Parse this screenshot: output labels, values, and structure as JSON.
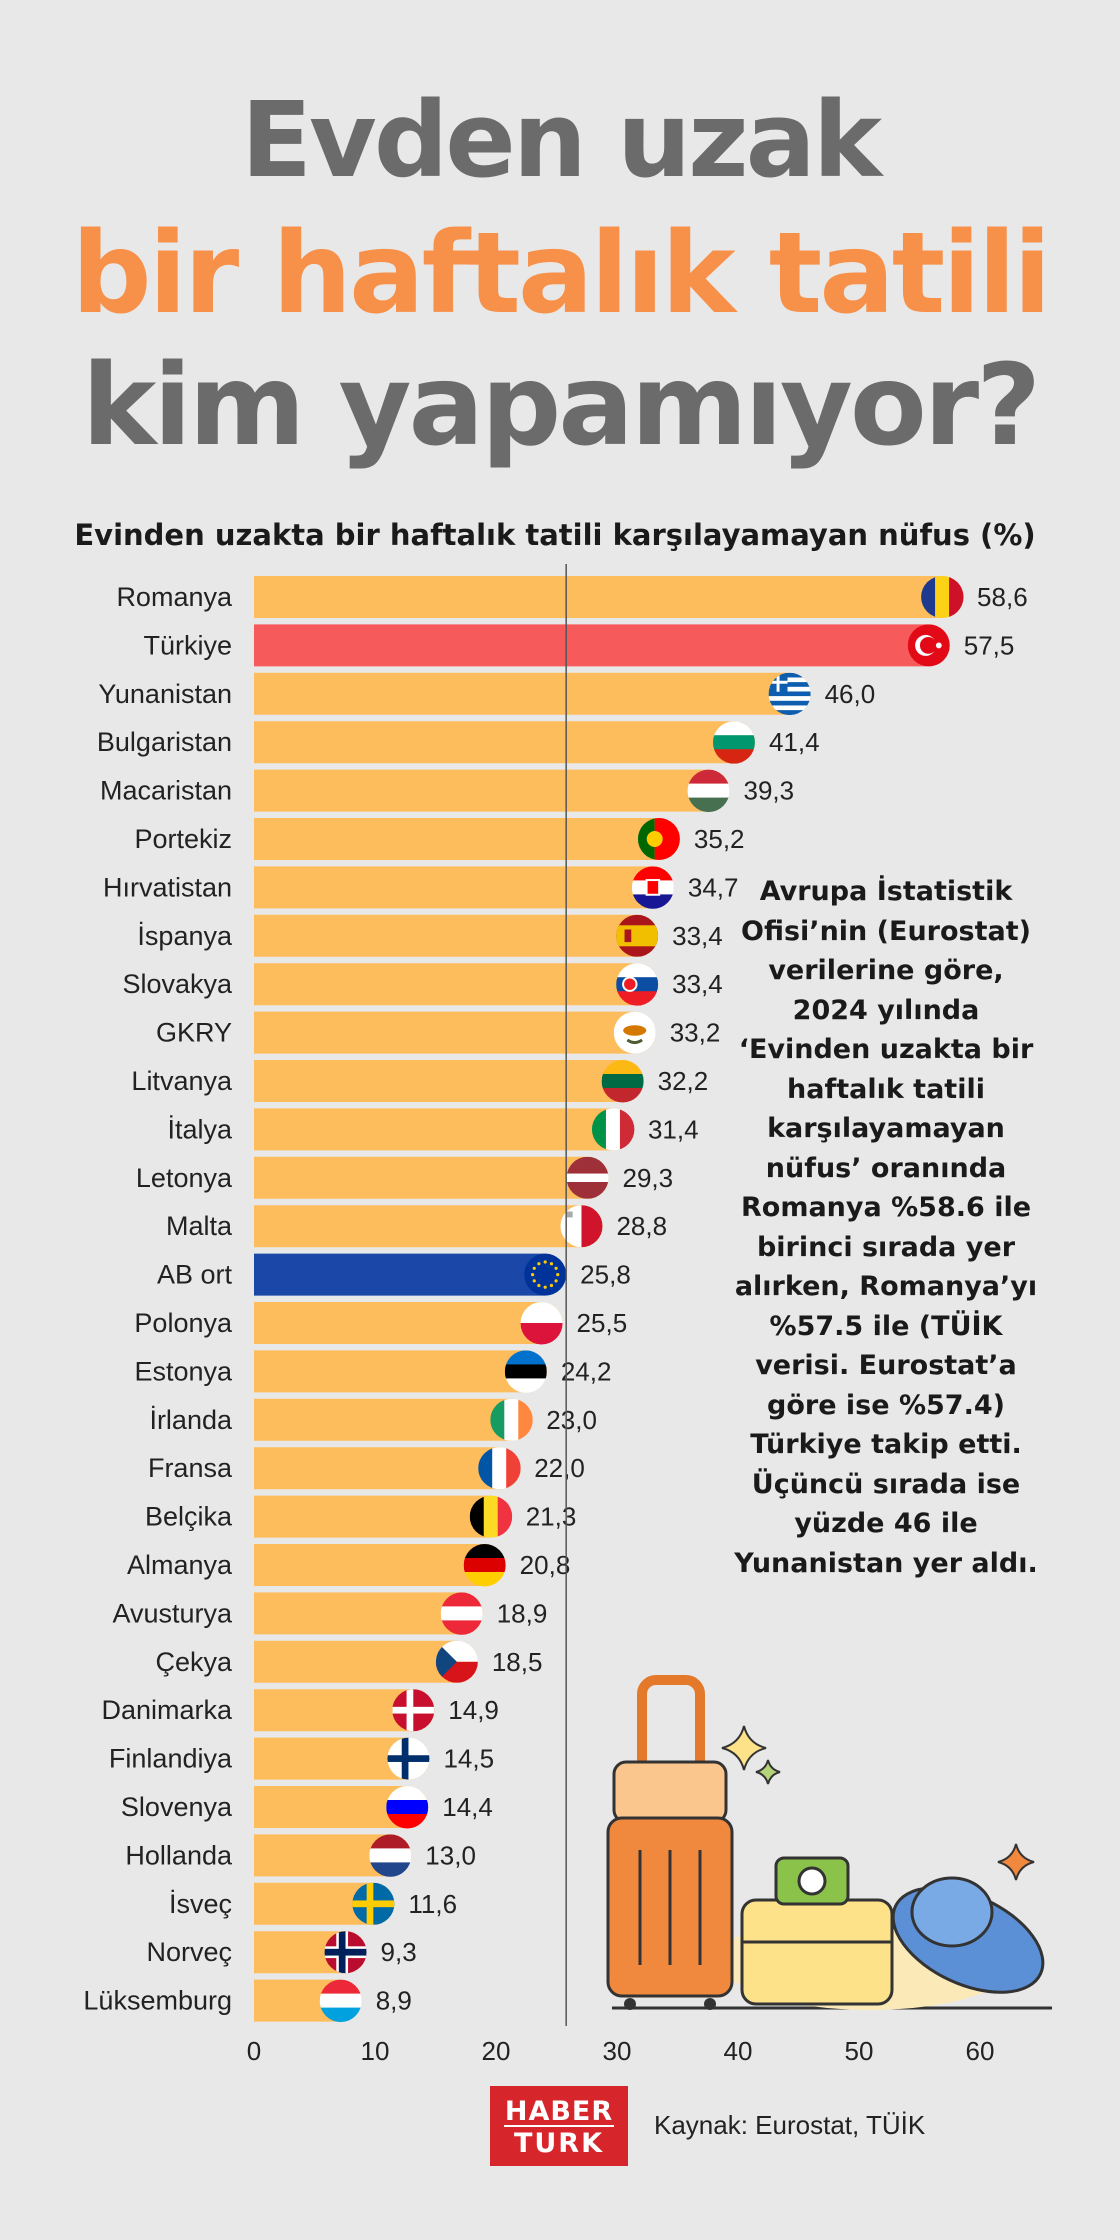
{
  "header": {
    "line1": "Evden uzak",
    "line2": "bir haftalık tatili",
    "line3": "kim yapamıyor?"
  },
  "note": {
    "text": "Avrupa İstatistik Ofisi’nin (Eurostat) verilerine göre, 2024 yılında ‘Evinden uzakta bir haftalık tatili karşılayamayan nüfus’ oranında Romanya %58.6 ile birinci sırada yer alırken, Romanya’yı %57.5 ile (TÜİK verisi. Eurostat’a göre ise %57.4) Türkiye takip etti. Üçüncü sırada ise yüzde 46 ile Yunanistan yer aldı."
  },
  "footer": {
    "logo_top": "HABER",
    "logo_bottom": "TURK",
    "source": "Kaynak: Eurostat, TÜİK"
  },
  "colors": {
    "bar": "#fdbd5c",
    "highlight": "#f75a5a",
    "average": "#1a47a8",
    "title_gray": "#6b6b6b",
    "title_orange": "#f7914a"
  },
  "chart_data": {
    "type": "bar",
    "orientation": "horizontal",
    "title": "Evinden uzakta bir haftalık tatili karşılayamayan nüfus (%)",
    "categories": [
      "Romanya",
      "Türkiye",
      "Yunanistan",
      "Bulgaristan",
      "Macaristan",
      "Portekiz",
      "Hırvatistan",
      "İspanya",
      "Slovakya",
      "GKRY",
      "Litvanya",
      "İtalya",
      "Letonya",
      "Malta",
      "AB ort",
      "Polonya",
      "Estonya",
      "İrlanda",
      "Fransa",
      "Belçika",
      "Almanya",
      "Avusturya",
      "Çekya",
      "Danimarka",
      "Finlandiya",
      "Slovenya",
      "Hollanda",
      "İsveç",
      "Norveç",
      "Lüksemburg"
    ],
    "values": [
      58.6,
      57.5,
      46.0,
      41.4,
      39.3,
      35.2,
      34.7,
      33.4,
      33.4,
      33.2,
      32.2,
      31.4,
      29.3,
      28.8,
      25.8,
      25.5,
      24.2,
      23.0,
      22.0,
      21.3,
      20.8,
      18.9,
      18.5,
      14.9,
      14.5,
      14.4,
      13.0,
      11.6,
      9.3,
      8.9
    ],
    "value_labels": [
      "58,6",
      "57,5",
      "46,0",
      "41,4",
      "39,3",
      "35,2",
      "34,7",
      "33,4",
      "33,4",
      "33,2",
      "32,2",
      "31,4",
      "29,3",
      "28,8",
      "25,8",
      "25,5",
      "24,2",
      "23,0",
      "22,0",
      "21,3",
      "20,8",
      "18,9",
      "18,5",
      "14,9",
      "14,5",
      "14,4",
      "13,0",
      "11,6",
      "9,3",
      "8,9"
    ],
    "flags": [
      "ro",
      "tr",
      "gr",
      "bg",
      "hu",
      "pt",
      "hr",
      "es",
      "sk",
      "cy",
      "lt",
      "it",
      "lv",
      "mt",
      "eu",
      "pl",
      "ee",
      "ie",
      "fr",
      "be",
      "de",
      "at",
      "cz",
      "dk",
      "fi",
      "si",
      "nl",
      "se",
      "no",
      "lu"
    ],
    "highlight": {
      "Türkiye": "highlight",
      "AB ort": "average"
    },
    "xlim": [
      0,
      65
    ],
    "xticks": [
      0,
      10,
      20,
      30,
      40,
      50,
      60
    ],
    "reference_line": 25.8,
    "grid": false
  }
}
